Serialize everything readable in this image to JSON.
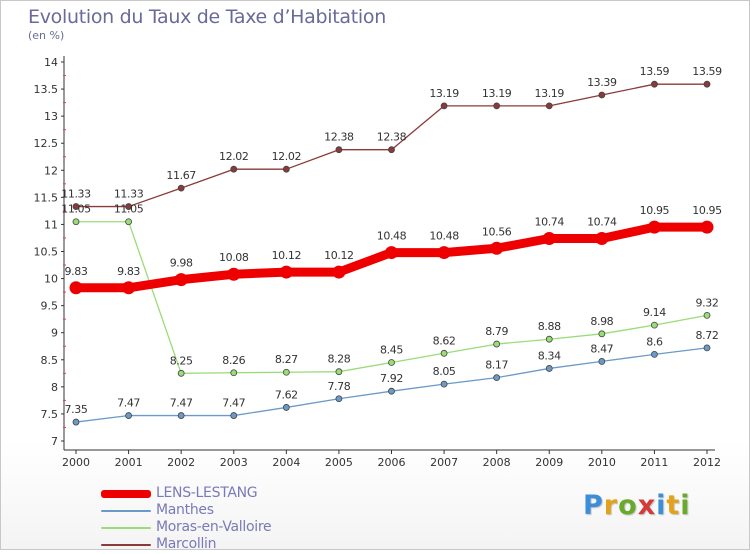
{
  "header": {
    "title": "Evolution du Taux de Taxe d’Habitation",
    "unit": "(en %)"
  },
  "logo": {
    "text": "Proxiti",
    "letter_colors": [
      "#3a8fd8",
      "#e2a21a",
      "#6aaa2a",
      "#d43a3a",
      "#3a8fd8",
      "#e2a21a",
      "#6aaa2a"
    ]
  },
  "chart_data": {
    "type": "line",
    "x": [
      "2000",
      "2001",
      "2002",
      "2003",
      "2004",
      "2005",
      "2006",
      "2007",
      "2008",
      "2009",
      "2010",
      "2011",
      "2012"
    ],
    "ylim": [
      7,
      14
    ],
    "yticks": [
      "7",
      "7.5",
      "8",
      "8.5",
      "9",
      "9.5",
      "10",
      "10.5",
      "11",
      "11.5",
      "12",
      "12.5",
      "13",
      "13.5",
      "14"
    ],
    "grid": false,
    "legend_position": "bottom-left",
    "series": [
      {
        "name": "LENS-LESTANG",
        "color": "#ee0000",
        "values": [
          9.83,
          9.83,
          9.98,
          10.08,
          10.12,
          10.12,
          10.48,
          10.48,
          10.56,
          10.74,
          10.74,
          10.95,
          10.95
        ],
        "labels": [
          "9.83",
          "9.83",
          "9.98",
          "10.08",
          "10.12",
          "10.12",
          "10.48",
          "10.48",
          "10.56",
          "10.74",
          "10.74",
          "10.95",
          "10.95"
        ]
      },
      {
        "name": "Manthes",
        "color": "#6a9ac8",
        "values": [
          7.35,
          7.47,
          7.47,
          7.47,
          7.62,
          7.78,
          7.92,
          8.05,
          8.17,
          8.34,
          8.47,
          8.6,
          8.72
        ],
        "labels": [
          "7.35",
          "7.47",
          "7.47",
          "7.47",
          "7.62",
          "7.78",
          "7.92",
          "8.05",
          "8.17",
          "8.34",
          "8.47",
          "8.6",
          "8.72"
        ]
      },
      {
        "name": "Moras-en-Valloire",
        "color": "#99dd77",
        "values": [
          11.05,
          11.05,
          8.25,
          8.26,
          8.27,
          8.28,
          8.45,
          8.62,
          8.79,
          8.88,
          8.98,
          9.14,
          9.32
        ],
        "labels": [
          "11.05",
          "11.05",
          "8.25",
          "8.26",
          "8.27",
          "8.28",
          "8.45",
          "8.62",
          "8.79",
          "8.88",
          "8.98",
          "9.14",
          "9.32"
        ]
      },
      {
        "name": "Marcollin",
        "color": "#8a3a3a",
        "values": [
          11.33,
          11.33,
          11.67,
          12.02,
          12.02,
          12.38,
          12.38,
          13.19,
          13.19,
          13.19,
          13.39,
          13.59,
          13.59
        ],
        "labels": [
          "11.33",
          "11.33",
          "11.67",
          "12.02",
          "12.02",
          "12.38",
          "12.38",
          "13.19",
          "13.19",
          "13.19",
          "13.39",
          "13.59",
          "13.59"
        ]
      }
    ]
  }
}
